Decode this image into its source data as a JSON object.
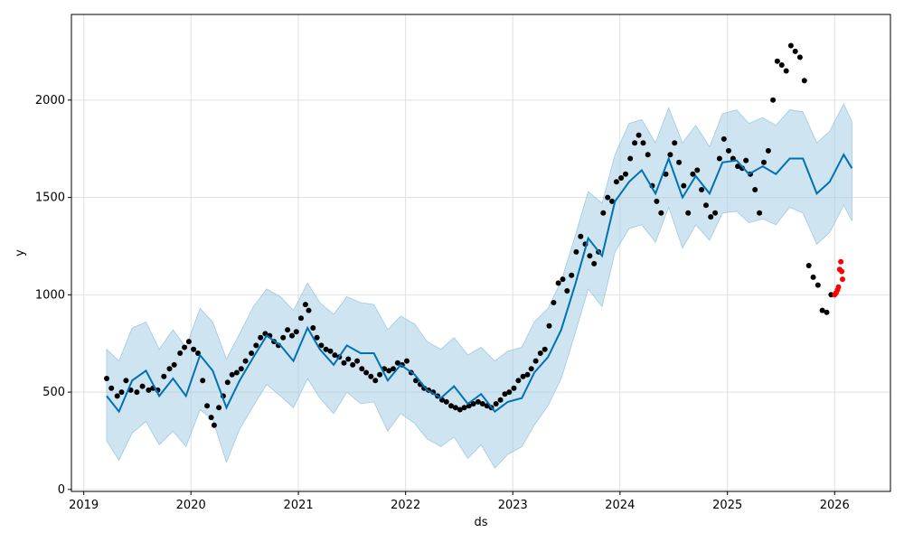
{
  "chart_data": {
    "type": "line",
    "title": "",
    "xlabel": "ds",
    "ylabel": "y",
    "grid": true,
    "xlim": [
      "2018-11-20",
      "2026-07-10"
    ],
    "ylim": [
      -10,
      2440
    ],
    "x_ticks": [
      "2019",
      "2020",
      "2021",
      "2022",
      "2023",
      "2024",
      "2025",
      "2026"
    ],
    "y_ticks": [
      0,
      500,
      1000,
      1500,
      2000
    ],
    "colors": {
      "forecast": "#0072B2",
      "interval": "#9ecae1",
      "observed": "#000000",
      "recent": "#ff0000"
    },
    "forecast": {
      "ds": [
        "2019-03-20",
        "2019-05-01",
        "2019-06-15",
        "2019-08-01",
        "2019-09-15",
        "2019-11-01",
        "2019-12-15",
        "2020-02-01",
        "2020-03-15",
        "2020-05-01",
        "2020-06-15",
        "2020-08-01",
        "2020-09-15",
        "2020-11-01",
        "2020-12-15",
        "2021-02-01",
        "2021-03-15",
        "2021-05-01",
        "2021-06-15",
        "2021-08-01",
        "2021-09-15",
        "2021-11-01",
        "2021-12-15",
        "2022-02-01",
        "2022-03-15",
        "2022-05-01",
        "2022-06-15",
        "2022-08-01",
        "2022-09-15",
        "2022-11-01",
        "2022-12-15",
        "2023-02-01",
        "2023-03-15",
        "2023-05-01",
        "2023-06-15",
        "2023-08-01",
        "2023-09-15",
        "2023-11-01",
        "2023-12-15",
        "2024-02-01",
        "2024-03-15",
        "2024-05-01",
        "2024-06-15",
        "2024-08-01",
        "2024-09-15",
        "2024-11-01",
        "2024-12-15",
        "2025-02-01",
        "2025-03-15",
        "2025-05-01",
        "2025-06-15",
        "2025-08-01",
        "2025-09-15",
        "2025-11-01",
        "2025-12-15",
        "2026-02-01",
        "2026-03-01"
      ],
      "yhat": [
        480,
        400,
        560,
        610,
        480,
        570,
        480,
        690,
        610,
        420,
        560,
        680,
        790,
        740,
        660,
        830,
        720,
        640,
        740,
        700,
        700,
        560,
        640,
        590,
        510,
        470,
        530,
        440,
        490,
        400,
        450,
        470,
        600,
        680,
        820,
        1050,
        1290,
        1200,
        1480,
        1580,
        1640,
        1520,
        1700,
        1500,
        1610,
        1520,
        1680,
        1690,
        1620,
        1660,
        1620,
        1700,
        1700,
        1520,
        1580,
        1720,
        1650
      ],
      "lower": [
        250,
        150,
        290,
        350,
        230,
        300,
        220,
        410,
        360,
        140,
        310,
        430,
        540,
        480,
        420,
        570,
        470,
        390,
        500,
        440,
        450,
        300,
        390,
        340,
        260,
        220,
        270,
        160,
        230,
        110,
        180,
        220,
        330,
        430,
        570,
        800,
        1030,
        940,
        1220,
        1340,
        1360,
        1270,
        1450,
        1240,
        1360,
        1280,
        1420,
        1430,
        1370,
        1390,
        1360,
        1450,
        1420,
        1260,
        1320,
        1460,
        1380
      ],
      "upper": [
        720,
        660,
        830,
        860,
        720,
        820,
        730,
        930,
        860,
        670,
        800,
        940,
        1030,
        990,
        920,
        1060,
        960,
        900,
        990,
        960,
        950,
        820,
        890,
        850,
        760,
        720,
        780,
        690,
        730,
        660,
        710,
        730,
        860,
        930,
        1070,
        1300,
        1530,
        1470,
        1720,
        1880,
        1900,
        1780,
        1960,
        1780,
        1870,
        1760,
        1930,
        1950,
        1880,
        1910,
        1870,
        1950,
        1940,
        1780,
        1840,
        1980,
        1890
      ]
    },
    "series": [
      {
        "name": "",
        "color": "#000000",
        "x": [
          "2019-03-20",
          "2019-04-05",
          "2019-04-25",
          "2019-05-10",
          "2019-05-25",
          "2019-06-10",
          "2019-07-01",
          "2019-07-20",
          "2019-08-10",
          "2019-08-25",
          "2019-09-10",
          "2019-10-01",
          "2019-10-20",
          "2019-11-05",
          "2019-11-25",
          "2019-12-10",
          "2019-12-25",
          "2020-01-10",
          "2020-01-25",
          "2020-02-10",
          "2020-02-25",
          "2020-03-10",
          "2020-03-20",
          "2020-04-05",
          "2020-04-20",
          "2020-05-05",
          "2020-05-20",
          "2020-06-05",
          "2020-06-20",
          "2020-07-05",
          "2020-07-25",
          "2020-08-10",
          "2020-08-25",
          "2020-09-10",
          "2020-09-25",
          "2020-10-10",
          "2020-10-25",
          "2020-11-10",
          "2020-11-25",
          "2020-12-10",
          "2020-12-25",
          "2021-01-10",
          "2021-01-25",
          "2021-02-05",
          "2021-02-20",
          "2021-03-05",
          "2021-03-20",
          "2021-04-05",
          "2021-04-20",
          "2021-05-05",
          "2021-05-20",
          "2021-06-05",
          "2021-06-20",
          "2021-07-05",
          "2021-07-20",
          "2021-08-05",
          "2021-08-20",
          "2021-09-05",
          "2021-09-20",
          "2021-10-05",
          "2021-10-20",
          "2021-11-05",
          "2021-11-20",
          "2021-12-05",
          "2021-12-20",
          "2022-01-05",
          "2022-01-20",
          "2022-02-05",
          "2022-02-20",
          "2022-03-05",
          "2022-03-20",
          "2022-04-05",
          "2022-04-20",
          "2022-05-05",
          "2022-05-20",
          "2022-06-05",
          "2022-06-20",
          "2022-07-05",
          "2022-07-20",
          "2022-08-05",
          "2022-08-20",
          "2022-09-05",
          "2022-09-20",
          "2022-10-05",
          "2022-10-20",
          "2022-11-05",
          "2022-11-20",
          "2022-12-05",
          "2022-12-20",
          "2023-01-05",
          "2023-01-20",
          "2023-02-05",
          "2023-02-20",
          "2023-03-05",
          "2023-03-20",
          "2023-04-05",
          "2023-04-20",
          "2023-05-05",
          "2023-05-20",
          "2023-06-05",
          "2023-06-20",
          "2023-07-05",
          "2023-07-20",
          "2023-08-05",
          "2023-08-20",
          "2023-09-05",
          "2023-09-20",
          "2023-10-05",
          "2023-10-20",
          "2023-11-05",
          "2023-11-20",
          "2023-12-05",
          "2023-12-20",
          "2024-01-05",
          "2024-01-20",
          "2024-02-05",
          "2024-02-20",
          "2024-03-05",
          "2024-03-20",
          "2024-04-05",
          "2024-04-20",
          "2024-05-05",
          "2024-05-20",
          "2024-06-05",
          "2024-06-20",
          "2024-07-05",
          "2024-07-20",
          "2024-08-05",
          "2024-08-20",
          "2024-09-05",
          "2024-09-20",
          "2024-10-05",
          "2024-10-20",
          "2024-11-05",
          "2024-11-20",
          "2024-12-05",
          "2024-12-20",
          "2025-01-05",
          "2025-01-20",
          "2025-02-05",
          "2025-02-20",
          "2025-03-05",
          "2025-03-20",
          "2025-04-05",
          "2025-04-20",
          "2025-05-05",
          "2025-05-20",
          "2025-06-05",
          "2025-06-20",
          "2025-07-05",
          "2025-07-20",
          "2025-08-05",
          "2025-08-20",
          "2025-09-05",
          "2025-09-20",
          "2025-10-05",
          "2025-10-20",
          "2025-11-05",
          "2025-11-20",
          "2025-12-05",
          "2025-12-20"
        ],
        "y": [
          570,
          520,
          480,
          500,
          560,
          510,
          500,
          530,
          510,
          520,
          510,
          580,
          620,
          640,
          700,
          730,
          760,
          720,
          700,
          560,
          430,
          370,
          330,
          420,
          480,
          550,
          590,
          600,
          620,
          660,
          700,
          740,
          780,
          800,
          790,
          760,
          740,
          780,
          820,
          790,
          810,
          880,
          950,
          920,
          830,
          780,
          740,
          720,
          710,
          690,
          680,
          650,
          670,
          640,
          660,
          620,
          600,
          580,
          560,
          590,
          620,
          610,
          620,
          650,
          640,
          660,
          600,
          560,
          540,
          520,
          510,
          500,
          480,
          460,
          450,
          430,
          420,
          410,
          420,
          430,
          440,
          450,
          440,
          430,
          420,
          440,
          460,
          490,
          500,
          520,
          560,
          580,
          590,
          620,
          660,
          700,
          720,
          840,
          960,
          1060,
          1080,
          1020,
          1100,
          1220,
          1300,
          1260,
          1200,
          1160,
          1220,
          1420,
          1500,
          1480,
          1580,
          1600,
          1620,
          1700,
          1780,
          1820,
          1780,
          1720,
          1560,
          1480,
          1420,
          1620,
          1720,
          1780,
          1680,
          1560,
          1420,
          1620,
          1640,
          1540,
          1460,
          1400,
          1420,
          1700,
          1800,
          1740,
          1700,
          1660,
          1650,
          1690,
          1620,
          1540,
          1420,
          1680,
          1740,
          2000,
          2200,
          2180,
          2150,
          2280,
          2250,
          2220,
          2100,
          1150,
          1090,
          1050,
          920,
          910,
          1000
        ],
        "size": 3
      },
      {
        "name": "",
        "color": "#ff0000",
        "x": [
          "2026-01-01",
          "2026-01-06",
          "2026-01-11",
          "2026-01-14",
          "2026-01-18",
          "2026-01-22",
          "2026-01-25",
          "2026-01-28"
        ],
        "y": [
          1000,
          1010,
          1025,
          1040,
          1130,
          1170,
          1120,
          1080
        ],
        "size": 3
      }
    ]
  }
}
